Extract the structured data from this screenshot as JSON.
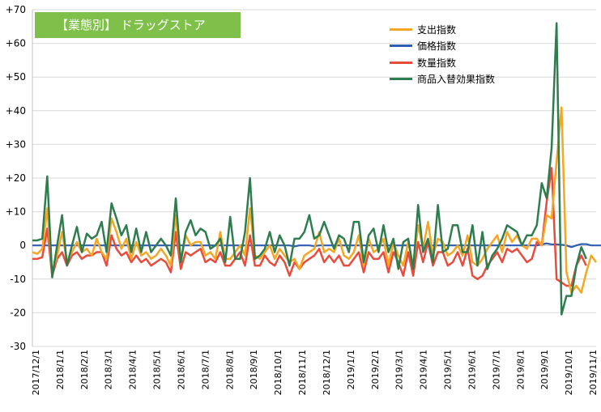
{
  "title_badge": "【業態別】 ドラッグストア",
  "chart_data": {
    "type": "line",
    "title": "【業態別】 ドラッグストア",
    "xlabel": "",
    "ylabel": "",
    "ylim": [
      -30,
      70
    ],
    "y_ticks": [
      70,
      60,
      50,
      40,
      30,
      20,
      10,
      0,
      -10,
      -20,
      -30
    ],
    "y_tick_labels": [
      "+70",
      "+60",
      "+50",
      "+40",
      "+30",
      "+20",
      "+10",
      "0",
      "-10",
      "-20",
      "-30"
    ],
    "x_tick_labels": [
      "2017/12/1",
      "2018/1/1",
      "2018/2/1",
      "2018/3/1",
      "2018/4/1",
      "2018/5/1",
      "2018/6/1",
      "2018/7/1",
      "2018/8/1",
      "2018/9/1",
      "2018/10/1",
      "2018/11/1",
      "2018/12/1",
      "2019/1/1",
      "2019/2/1",
      "2019/3/1",
      "2019/4/1",
      "2019/5/1",
      "2019/6/1",
      "2019/7/1",
      "2019/8/1",
      "2019/9/1",
      "2019/10/1",
      "2019/11/1"
    ],
    "grid": true,
    "legend_position": "top-right",
    "series": [
      {
        "name": "支出指数",
        "color": "#f5a623",
        "values": [
          -2,
          -2.5,
          -1,
          11,
          -8,
          -3,
          4,
          -5,
          -2,
          1,
          -2,
          -1,
          -3,
          2,
          -2,
          -4,
          8,
          4,
          -1,
          2,
          -4,
          1,
          -3,
          -2,
          -4,
          -3,
          -1,
          -3,
          -6,
          9,
          -5,
          3,
          0,
          1,
          1,
          -3,
          -2,
          -4,
          4,
          -4,
          -4,
          -2,
          0,
          -3,
          11,
          -3,
          -4,
          -2,
          0,
          -4,
          -1,
          -3,
          -5,
          -4,
          -7,
          -3,
          -2,
          -1,
          4,
          -2,
          -1,
          -2,
          2,
          -3,
          -4,
          -2,
          3,
          -6,
          2,
          -2,
          -1,
          2,
          -6,
          1,
          -3,
          -6,
          1,
          -6,
          6,
          -1,
          7,
          -3,
          2,
          1,
          -3,
          -2,
          0,
          -3,
          3,
          -5,
          -6,
          -4,
          -1,
          1,
          3,
          -2,
          4,
          1,
          3,
          0,
          -1,
          2,
          2,
          0,
          9,
          8,
          25,
          41,
          -8,
          -14,
          -12,
          -14,
          -8,
          -3,
          -5
        ]
      },
      {
        "name": "価格指数",
        "color": "#2f5db5",
        "values": [
          0,
          0,
          0,
          0,
          0,
          0,
          0,
          0,
          0,
          0,
          0,
          0,
          0,
          0,
          0,
          0,
          0,
          0,
          0,
          0,
          0,
          0,
          0,
          0,
          0,
          0,
          0,
          0,
          0,
          0,
          0,
          0,
          0,
          0,
          0,
          0,
          0,
          0,
          0,
          0,
          0,
          0,
          0,
          0,
          0,
          0,
          0,
          0,
          0,
          0,
          0,
          0,
          0,
          -0.3,
          0,
          0,
          0,
          -0.2,
          0,
          0,
          0,
          0,
          0,
          0,
          0,
          0,
          0,
          0,
          0,
          0,
          0,
          0,
          0,
          0,
          0,
          0,
          0,
          0,
          0,
          0,
          0,
          0,
          0,
          0,
          0,
          0,
          0,
          0,
          0,
          0,
          0,
          0,
          0,
          0,
          0,
          0,
          0,
          0,
          0,
          0,
          0,
          0,
          0,
          0.3,
          0.6,
          0.3,
          0.3,
          0.2,
          0,
          -0.5,
          0,
          0.4,
          0.4,
          0,
          0,
          0,
          0,
          0,
          0
        ]
      },
      {
        "name": "数量指数",
        "color": "#e94b3c",
        "values": [
          -4,
          -4,
          -3.5,
          5,
          -9,
          -4,
          -2,
          -6,
          -3,
          -2,
          -4,
          -3,
          -3,
          -2,
          -2,
          -6,
          3,
          -1,
          -3,
          -2,
          -5,
          -3,
          -5,
          -4,
          -6,
          -5,
          -4,
          -5,
          -8,
          4,
          -7,
          -2,
          -3,
          -2,
          -1,
          -5,
          -4,
          -5,
          -2,
          -6,
          -6,
          -4,
          -2,
          -6,
          3,
          -6,
          -6,
          -3,
          -5,
          -6,
          -3,
          -5,
          -9,
          -5,
          -7,
          -5,
          -4,
          -3,
          -1,
          -5,
          -3,
          -5,
          -3,
          -6,
          -6,
          -4,
          -2,
          -8,
          -2,
          -4,
          -4,
          -2,
          -8,
          -2,
          -5,
          -9,
          -2,
          -9,
          1,
          -5,
          1,
          -6,
          -2,
          -2,
          -6,
          -5,
          -2,
          -6,
          -1,
          -9,
          -10,
          -9,
          -6,
          -4,
          -2,
          -5,
          -1,
          -2,
          -1,
          -3,
          -5,
          -4,
          1,
          0,
          13,
          23,
          -10,
          -11,
          -12,
          -12,
          -6,
          -3,
          -6
        ]
      },
      {
        "name": "商品入替効果指数",
        "color": "#2e7d4f",
        "values": [
          1.5,
          1.5,
          2,
          20.5,
          -9.5,
          0,
          9,
          -6,
          0,
          5.5,
          -2,
          3.5,
          2,
          3,
          7,
          -2,
          12.5,
          8,
          3,
          6,
          -2,
          5,
          -2,
          4,
          -2,
          0,
          2,
          0,
          -3,
          14,
          -5,
          4,
          7.5,
          3,
          5,
          4,
          -1,
          0,
          2,
          -5,
          8.5,
          -4,
          -4,
          4,
          20,
          -4,
          -3,
          -1,
          4,
          -2,
          3,
          0,
          -6,
          2,
          2,
          4,
          9,
          2,
          3,
          7,
          3,
          -1,
          3,
          2,
          -2,
          7,
          7,
          -5,
          3,
          5,
          -2,
          6,
          -2,
          2,
          -7,
          1,
          2,
          -7,
          12,
          -2,
          2,
          -5,
          12,
          -2,
          -1,
          6,
          6,
          -2,
          -2,
          6,
          -6,
          4,
          -7,
          -3,
          -1,
          2,
          6,
          5,
          4,
          0,
          3,
          3,
          6,
          18.5,
          14,
          29,
          66,
          -20.5,
          -15,
          -15,
          -6,
          -0.5,
          -4
        ]
      }
    ]
  }
}
